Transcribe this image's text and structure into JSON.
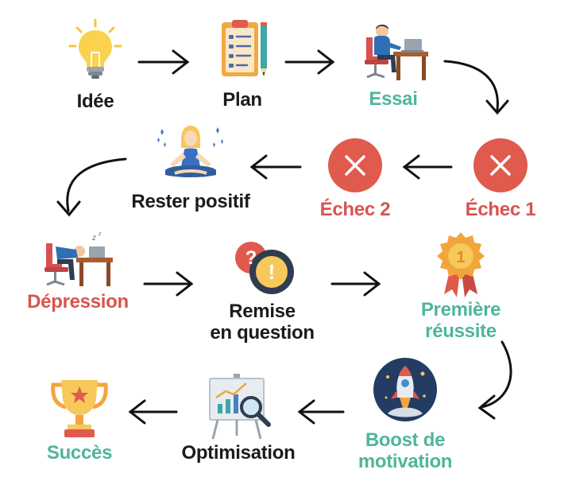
{
  "steps": {
    "idee": "Idée",
    "plan": "Plan",
    "essai": "Essai",
    "echec1": "Échec 1",
    "echec2": "Échec 2",
    "rester_positif": "Rester positif",
    "depression": "Dépression",
    "remise_1": "Remise",
    "remise_2": "en question",
    "premiere_1": "Première",
    "premiere_2": "réussite",
    "boost_1": "Boost de",
    "boost_2": "motivation",
    "optimisation": "Optimisation",
    "succes": "Succès"
  },
  "badges": {
    "medal_number": "1",
    "question_mark": "?",
    "exclamation_mark": "!",
    "sleep_z": "z"
  },
  "colors": {
    "dark_label": "#1b1b1b",
    "teal_label": "#4fb59b",
    "red_label": "#d7544f",
    "failure_circle": "#e05a4e",
    "arrow": "#111111"
  },
  "icons": {
    "idee": "lightbulb-icon",
    "plan": "clipboard-checklist-icon",
    "essai": "person-at-desk-icon",
    "echec": "x-circle-icon",
    "rester_positif": "meditating-woman-icon",
    "depression": "head-down-desk-icon",
    "remise_en_question": "question-exclamation-bubbles-icon",
    "premiere_reussite": "medal-rosette-icon",
    "boost": "rocket-icon",
    "optimisation": "chart-board-magnifier-icon",
    "succes": "trophy-icon"
  }
}
